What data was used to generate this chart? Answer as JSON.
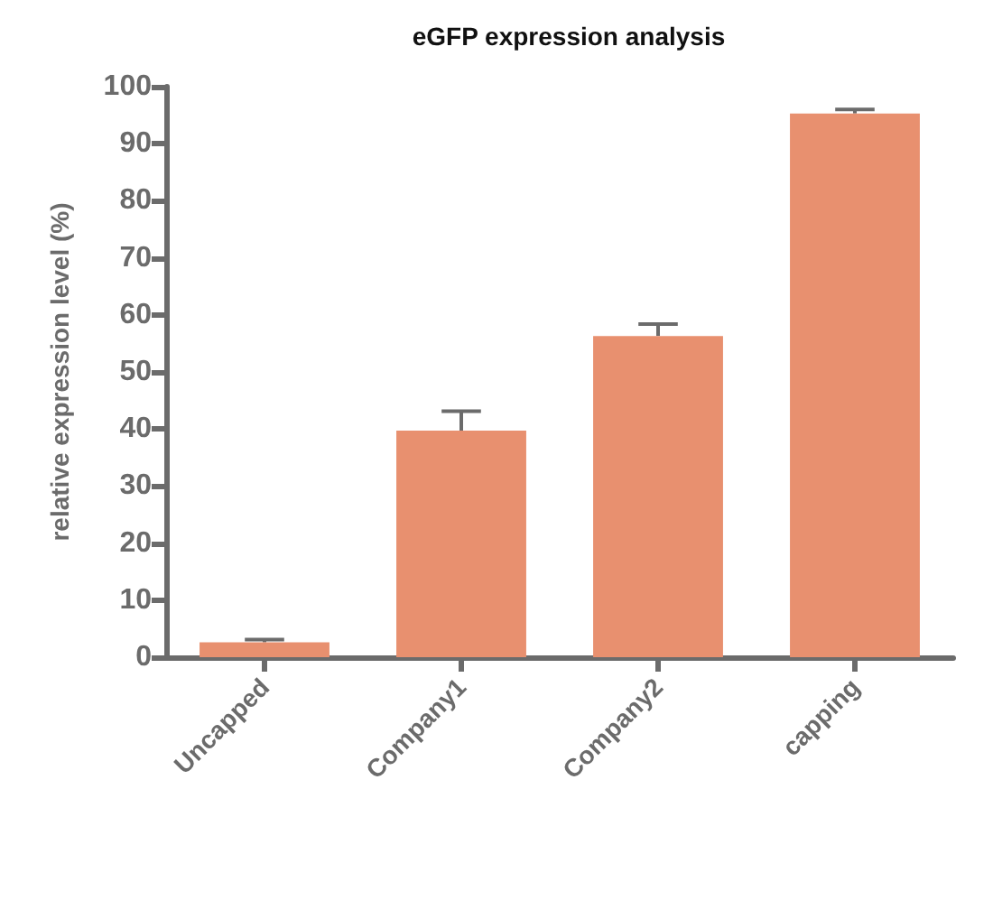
{
  "chart_data": {
    "type": "bar",
    "title": "eGFP expression analysis",
    "ylabel": "relative expression level (%)",
    "categories": [
      "Uncapped",
      "Company1",
      "Company2",
      "capping"
    ],
    "values": [
      2.6,
      39.7,
      56.3,
      95.3
    ],
    "errors": [
      0.5,
      3.4,
      2.1,
      0.7
    ],
    "color": "#e8906f",
    "ylim": [
      0,
      100
    ],
    "yticks": [
      0,
      10,
      20,
      30,
      40,
      50,
      60,
      70,
      80,
      90,
      100
    ],
    "grid": false
  }
}
